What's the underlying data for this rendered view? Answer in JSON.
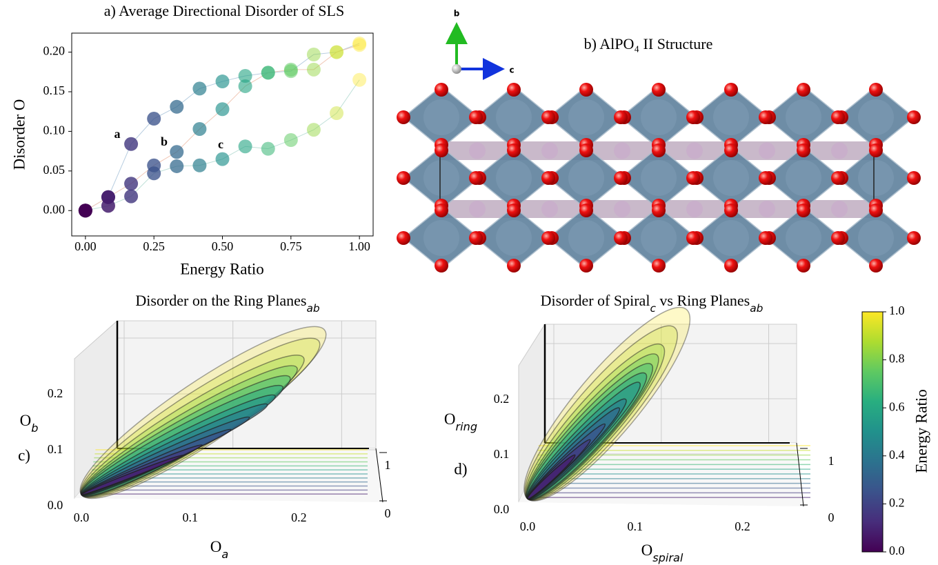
{
  "chart_data": [
    {
      "type": "scatter",
      "title": "a) Average Directional Disorder of SLS",
      "xlabel": "Energy Ratio",
      "ylabel": "Disorder O",
      "x": [
        0,
        0.0833,
        0.1667,
        0.25,
        0.3333,
        0.4167,
        0.5,
        0.5833,
        0.6667,
        0.75,
        0.8333,
        0.9167,
        1
      ],
      "series": [
        {
          "values": [
            0,
            0.017,
            0.084,
            0.116,
            0.131,
            0.154,
            0.163,
            0.17,
            0.174,
            0.176,
            0.197,
            0.2,
            0.211
          ]
        },
        {
          "values": [
            0,
            0.017,
            0.034,
            0.057,
            0.074,
            0.103,
            0.128,
            0.157,
            0.174,
            0.178,
            0.178,
            0.2,
            0.209
          ]
        },
        {
          "values": [
            0,
            0.006,
            0.018,
            0.047,
            0.056,
            0.057,
            0.065,
            0.081,
            0.078,
            0.089,
            0.102,
            0.123,
            0.165
          ]
        }
      ],
      "annotations": [
        "a",
        "b",
        "c"
      ],
      "xlim": [
        -0.05,
        1.05
      ],
      "ylim": [
        -0.032,
        0.224
      ],
      "xticks": [
        {
          "value": 0,
          "label": "0.00"
        },
        0.25,
        {
          "value": 0.5,
          "label": "0.50"
        },
        0.75,
        {
          "value": 1,
          "label": "1.00"
        }
      ],
      "yticks": [
        {
          "value": 0,
          "label": "0.00"
        },
        0.05,
        {
          "value": 0.1,
          "label": "0.10"
        },
        0.15,
        {
          "value": 0.2,
          "label": "0.20"
        }
      ]
    },
    {
      "type": "ellipse3d",
      "panel_label": "c)",
      "title": [
        "Disorder on the Ring Planes",
        "ab"
      ],
      "xlabel": [
        "O",
        "a"
      ],
      "zlabel": [
        "O",
        "b"
      ],
      "energy": [
        0.0833,
        0.1667,
        0.25,
        0.3333,
        0.4167,
        0.5,
        0.5833,
        0.6667,
        0.75,
        0.8333,
        0.9167,
        1
      ],
      "major": [
        0.1,
        0.12,
        0.15,
        0.17,
        0.19,
        0.2,
        0.21,
        0.22,
        0.23,
        0.24,
        0.26,
        0.27
      ],
      "minor": [
        0.004,
        0.006,
        0.008,
        0.012,
        0.016,
        0.02,
        0.026,
        0.03,
        0.034,
        0.04,
        0.048,
        0.056
      ],
      "xlim": [
        0,
        0.26
      ],
      "zlim": [
        0,
        0.25
      ],
      "xticks": [
        {
          "value": 0,
          "label": "0.0"
        },
        0.1,
        0.2
      ],
      "zticks": [
        {
          "value": 0,
          "label": "0.0"
        },
        0.1,
        0.2
      ],
      "depthticks": [
        0,
        1
      ]
    },
    {
      "type": "ellipse3d",
      "panel_label": "d)",
      "title": [
        "Disorder of Spiral",
        "c",
        " vs Ring Planes",
        "ab"
      ],
      "xlabel": [
        "O",
        "spiral"
      ],
      "zlabel": [
        "O",
        "ring"
      ],
      "energy": [
        0.0833,
        0.1667,
        0.25,
        0.3333,
        0.4167,
        0.5,
        0.5833,
        0.6667,
        0.75,
        0.8333,
        0.9167,
        1
      ],
      "major": [
        0.06,
        0.08,
        0.1,
        0.12,
        0.13,
        0.15,
        0.16,
        0.17,
        0.18,
        0.19,
        0.21,
        0.23
      ],
      "minor": [
        0.006,
        0.008,
        0.01,
        0.014,
        0.018,
        0.022,
        0.028,
        0.032,
        0.036,
        0.042,
        0.05,
        0.058
      ],
      "xlim": [
        0,
        0.26
      ],
      "zlim": [
        0,
        0.25
      ],
      "xticks": [
        {
          "value": 0,
          "label": "0.0"
        },
        0.1,
        0.2
      ],
      "zticks": [
        {
          "value": 0,
          "label": "0.0"
        },
        0.1,
        0.2
      ],
      "depthticks": [
        0,
        1
      ]
    }
  ],
  "structure": {
    "title": "b) AlPO₄ II Structure",
    "axes": [
      "b",
      "c"
    ]
  },
  "colorbar": {
    "label": "Energy Ratio",
    "lim": [
      0,
      1
    ],
    "colors": [
      "#440154",
      "#472d7b",
      "#3b528b",
      "#2c728e",
      "#21918c",
      "#28ae80",
      "#5ec962",
      "#addc30",
      "#fde725"
    ],
    "ticks": [
      {
        "value": 0,
        "label": "0.0"
      },
      0.2,
      0.4,
      0.6,
      0.8,
      {
        "value": 1,
        "label": "1.0"
      }
    ]
  }
}
